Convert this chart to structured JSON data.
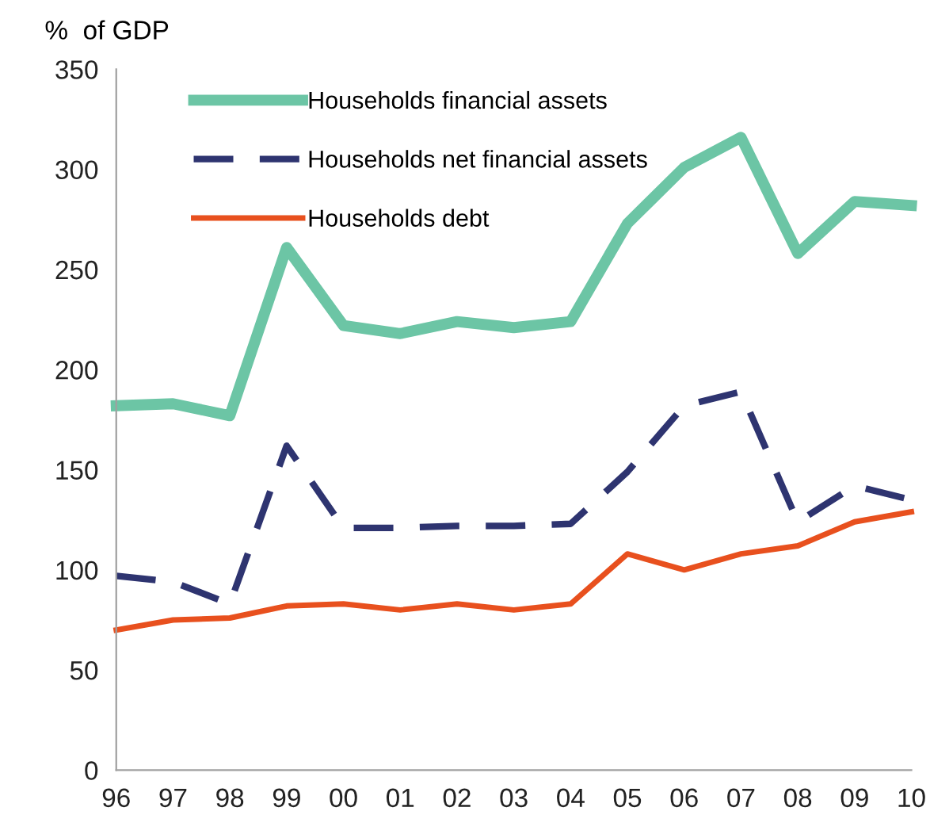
{
  "chart_data": {
    "type": "line",
    "ylabel": "%  of GDP",
    "categories": [
      "96",
      "97",
      "98",
      "99",
      "00",
      "01",
      "02",
      "03",
      "04",
      "05",
      "06",
      "07",
      "08",
      "09",
      "10"
    ],
    "series": [
      {
        "name": "Households financial assets",
        "color": "#6cc5a5",
        "line_style": "solid",
        "values": [
          182,
          183,
          177,
          261,
          222,
          218,
          224,
          221,
          224,
          273,
          301,
          316,
          258,
          284,
          282
        ]
      },
      {
        "name": "Households net financial assets",
        "color": "#2e3470",
        "line_style": "dashed",
        "values": [
          97,
          94,
          83,
          162,
          121,
          121,
          122,
          122,
          123,
          149,
          182,
          189,
          124,
          142,
          135
        ]
      },
      {
        "name": "Households debt",
        "color": "#e8501e",
        "line_style": "solid",
        "values": [
          70,
          75,
          76,
          82,
          83,
          80,
          83,
          80,
          83,
          108,
          100,
          108,
          112,
          124,
          129
        ]
      }
    ],
    "ylim": [
      0,
      350
    ],
    "yticks": [
      0,
      50,
      100,
      150,
      200,
      250,
      300,
      350
    ],
    "grid": false,
    "legend": "top left",
    "marker": "none"
  }
}
